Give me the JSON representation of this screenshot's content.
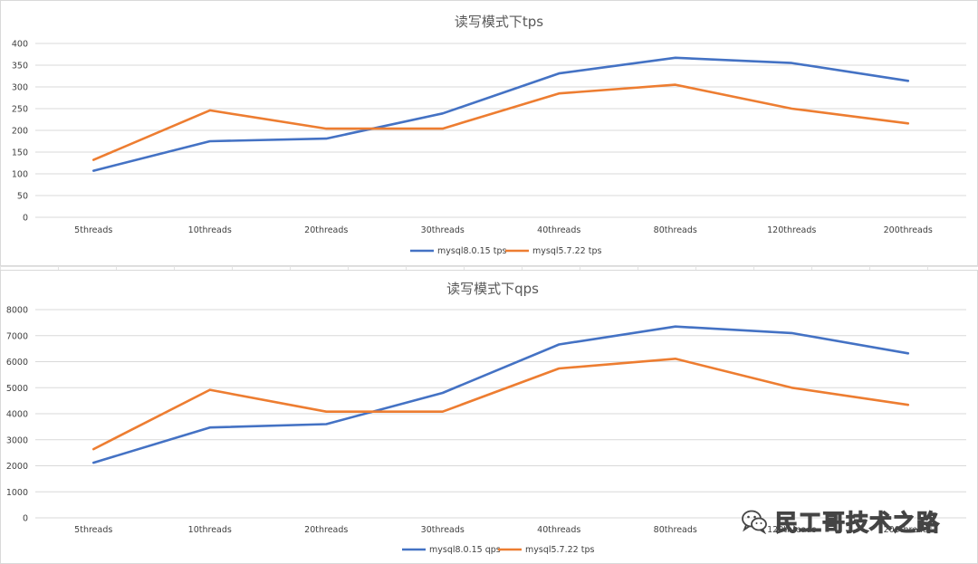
{
  "chart_data": [
    {
      "type": "line",
      "title": "读写模式下tps",
      "categories": [
        "5threads",
        "10threads",
        "20threads",
        "30threads",
        "40threads",
        "80threads",
        "120threads",
        "200threads"
      ],
      "ylim": [
        0,
        400
      ],
      "yticks": [
        0,
        50,
        100,
        150,
        200,
        250,
        300,
        350,
        400
      ],
      "grid": true,
      "legend": "bottom",
      "series": [
        {
          "name": "mysql8.0.15 tps",
          "color": "#4472C4",
          "values": [
            107,
            175,
            181,
            239,
            331,
            367,
            355,
            314
          ]
        },
        {
          "name": "mysql5.7.22 tps",
          "color": "#ED7D31",
          "values": [
            132,
            246,
            204,
            204,
            285,
            305,
            250,
            216
          ]
        }
      ]
    },
    {
      "type": "line",
      "title": "读写模式下qps",
      "categories": [
        "5threads",
        "10threads",
        "20threads",
        "30threads",
        "40threads",
        "80threads",
        "120threads",
        "200threads"
      ],
      "ylim": [
        0,
        8000
      ],
      "yticks": [
        0,
        1000,
        2000,
        3000,
        4000,
        5000,
        6000,
        7000,
        8000
      ],
      "grid": true,
      "legend": "bottom",
      "series": [
        {
          "name": "mysql8.0.15 qps",
          "color": "#4472C4",
          "values": [
            2120,
            3470,
            3600,
            4800,
            6660,
            7350,
            7100,
            6320
          ]
        },
        {
          "name": "mysql5.7.22 tps",
          "color": "#ED7D31",
          "values": [
            2640,
            4920,
            4080,
            4080,
            5740,
            6110,
            5000,
            4340
          ]
        }
      ]
    }
  ],
  "watermark": {
    "text": "民工哥技术之路",
    "icon": "wechat-icon"
  }
}
